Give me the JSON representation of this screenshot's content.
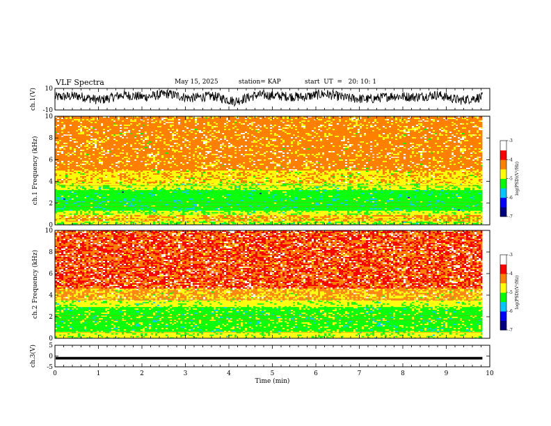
{
  "header": {
    "title": "VLF Spectra",
    "date": "May 15, 2025",
    "station": "station= KAP",
    "start": "start  UT  =   20: 10: 1"
  },
  "colors": {
    "trace": "#000000",
    "colormap": [
      "#000080",
      "#0000ff",
      "#00c8ff",
      "#00ff00",
      "#ffff00",
      "#ff8000",
      "#ff0000",
      "#ffffff"
    ]
  },
  "chart_data": [
    {
      "type": "line",
      "name": "ch1-voltage",
      "ylabel": "ch.1(V)",
      "ylim": [
        -10,
        10
      ],
      "yticks": [
        10,
        -10
      ],
      "xlim": [
        0,
        10
      ],
      "x_step_min": 0.5,
      "values": [
        2,
        3,
        -1,
        4,
        2,
        5,
        1,
        3,
        -2,
        4,
        3,
        2,
        5,
        1,
        0,
        3,
        2,
        4,
        -1,
        2
      ]
    },
    {
      "type": "heatmap",
      "name": "ch1-spectrogram",
      "ylabel": "ch.1 Frequency (kHz)",
      "ylim": [
        0,
        10
      ],
      "yticks": [
        0,
        2,
        4,
        6,
        8,
        10
      ],
      "xlim": [
        0,
        10
      ],
      "data_end_min": 9.83,
      "colorbar": {
        "label": "log(PSD)(V²/Hz)",
        "range": [
          -7,
          -3
        ],
        "ticks": [
          -3,
          -4,
          -5,
          -6,
          -7
        ]
      },
      "bands": [
        {
          "f": [
            0.0,
            0.3
          ],
          "level": -4.6
        },
        {
          "f": [
            0.3,
            0.9
          ],
          "level": -4.0
        },
        {
          "f": [
            0.9,
            1.3
          ],
          "level": -4.5
        },
        {
          "f": [
            1.3,
            3.2
          ],
          "level": -5.0
        },
        {
          "f": [
            3.2,
            3.8
          ],
          "level": -4.5
        },
        {
          "f": [
            3.8,
            5.0
          ],
          "level": -4.1
        },
        {
          "f": [
            5.0,
            10.0
          ],
          "level": -3.7
        }
      ]
    },
    {
      "type": "heatmap",
      "name": "ch2-spectrogram",
      "ylabel": "ch.2 Frequency (kHz)",
      "ylim": [
        0,
        10
      ],
      "yticks": [
        0,
        2,
        4,
        6,
        8,
        10
      ],
      "xlim": [
        0,
        10
      ],
      "data_end_min": 9.83,
      "colorbar": {
        "label": "log(PSD)(V²/Hz)",
        "range": [
          -7,
          -3
        ],
        "ticks": [
          -3,
          -4,
          -5,
          -6,
          -7
        ]
      },
      "bands": [
        {
          "f": [
            0.0,
            0.6
          ],
          "level": -4.4
        },
        {
          "f": [
            0.6,
            2.9
          ],
          "level": -4.9
        },
        {
          "f": [
            2.9,
            3.5
          ],
          "level": -4.4
        },
        {
          "f": [
            3.5,
            4.6
          ],
          "level": -3.9
        },
        {
          "f": [
            4.6,
            10.0
          ],
          "level": -3.3
        }
      ]
    },
    {
      "type": "line",
      "name": "ch3-voltage",
      "ylabel": "ch.3(V)",
      "xlabel": "Time (min)",
      "ylim": [
        -5,
        5
      ],
      "yticks": [
        5,
        0,
        -5
      ],
      "xlim": [
        0,
        10
      ],
      "xticks": [
        0,
        1,
        2,
        3,
        4,
        5,
        6,
        7,
        8,
        9,
        10
      ],
      "level": -1,
      "band_halfwidth": 0.6
    }
  ]
}
